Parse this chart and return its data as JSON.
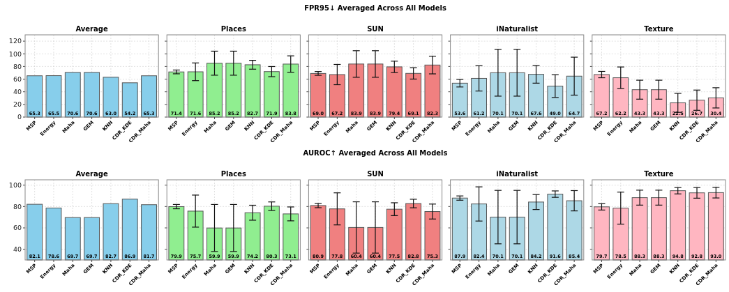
{
  "chart_data": [
    {
      "type": "bar",
      "title": "Average",
      "categories": [
        "MSP",
        "Energy",
        "Maha",
        "GEM",
        "KNN",
        "CDR_KDE",
        "CDR_Maha"
      ],
      "values": [
        65.3,
        65.5,
        70.6,
        70.6,
        63.0,
        54.2,
        65.3
      ],
      "value_labels": [
        "65.3",
        "65.5",
        "70.6",
        "70.6",
        "63.0",
        "54.2",
        "65.3"
      ],
      "color": "#87ceeb",
      "ylim": [
        0,
        130
      ],
      "yticks": [
        0,
        20,
        40,
        60,
        80,
        100,
        120
      ],
      "grid": true
    },
    {
      "type": "bar",
      "title": "Places",
      "categories": [
        "MSP",
        "Energy",
        "Maha",
        "GEM",
        "KNN",
        "CDR_KDE",
        "CDR_Maha"
      ],
      "values": [
        71.4,
        71.6,
        85.2,
        85.2,
        82.7,
        71.9,
        83.8
      ],
      "value_labels": [
        "71.4",
        "71.6",
        "85.2",
        "85.2",
        "82.7",
        "71.9",
        "83.8"
      ],
      "errors": [
        3,
        14,
        19,
        19,
        7,
        8,
        13
      ],
      "color": "#90ee90",
      "ylim": [
        0,
        130
      ],
      "yticks": [
        0,
        20,
        40,
        60,
        80,
        100,
        120
      ],
      "grid": true,
      "tick_labels": "x"
    },
    {
      "type": "bar",
      "subtitle": "FPR95↓ Averaged Across All Models",
      "title": "SUN",
      "categories": [
        "MSP",
        "Energy",
        "Maha",
        "GEM",
        "KNN",
        "CDR_KDE",
        "CDR_Maha"
      ],
      "values": [
        69.0,
        67.2,
        83.9,
        83.9,
        79.4,
        69.1,
        82.3
      ],
      "value_labels": [
        "69.0",
        "67.2",
        "83.9",
        "83.9",
        "79.4",
        "69.1",
        "82.3"
      ],
      "errors": [
        3,
        16,
        21,
        21,
        9,
        9,
        14
      ],
      "color": "#f08080",
      "ylim": [
        0,
        130
      ],
      "yticks": [
        0,
        20,
        40,
        60,
        80,
        100,
        120
      ],
      "grid": true,
      "tick_labels": "x"
    },
    {
      "type": "bar",
      "title": "iNaturalist",
      "categories": [
        "MSP",
        "Energy",
        "Maha",
        "GEM",
        "KNN",
        "CDR_KDE",
        "CDR_Maha"
      ],
      "values": [
        53.6,
        61.2,
        70.1,
        70.1,
        67.6,
        49.0,
        64.7
      ],
      "value_labels": [
        "53.6",
        "61.2",
        "70.1",
        "70.1",
        "67.6",
        "49.0",
        "64.7"
      ],
      "errors": [
        6,
        20,
        37,
        37,
        14,
        18,
        30
      ],
      "color": "#add8e6",
      "ylim": [
        0,
        130
      ],
      "yticks": [
        0,
        20,
        40,
        60,
        80,
        100,
        120
      ],
      "grid": true,
      "tick_labels": "x"
    },
    {
      "type": "bar",
      "title": "Texture",
      "categories": [
        "MSP",
        "Energy",
        "Maha",
        "GEM",
        "KNN",
        "CDR_KDE",
        "CDR_Maha"
      ],
      "values": [
        67.2,
        62.2,
        43.3,
        43.3,
        22.5,
        26.7,
        30.4
      ],
      "value_labels": [
        "67.2",
        "62.2",
        "43.3",
        "43.3",
        "22.5",
        "26.7",
        "30.4"
      ],
      "errors": [
        5,
        17,
        15,
        15,
        15,
        16,
        16
      ],
      "color": "#ffb6c1",
      "ylim": [
        0,
        130
      ],
      "yticks": [
        0,
        20,
        40,
        60,
        80,
        100,
        120
      ],
      "grid": true,
      "tick_labels": "x"
    },
    {
      "type": "bar",
      "title": "Average",
      "categories": [
        "MSP",
        "Energy",
        "Maha",
        "GEM",
        "KNN",
        "CDR_KDE",
        "CDR_Maha"
      ],
      "values": [
        82.1,
        78.6,
        69.7,
        69.7,
        82.7,
        86.9,
        81.7
      ],
      "value_labels": [
        "82.1",
        "78.6",
        "69.7",
        "69.7",
        "82.7",
        "86.9",
        "81.7"
      ],
      "color": "#87ceeb",
      "ylim": [
        30,
        105
      ],
      "yticks": [
        40,
        60,
        80,
        100
      ],
      "grid": true
    },
    {
      "type": "bar",
      "title": "Places",
      "categories": [
        "MSP",
        "Energy",
        "Maha",
        "GEM",
        "KNN",
        "CDR_KDE",
        "CDR_Maha"
      ],
      "values": [
        79.9,
        75.7,
        59.9,
        59.9,
        74.2,
        80.3,
        73.1
      ],
      "value_labels": [
        "79.9",
        "75.7",
        "59.9",
        "59.9",
        "74.2",
        "80.3",
        "73.1"
      ],
      "errors": [
        2,
        15,
        22,
        22,
        7,
        4,
        6.5
      ],
      "color": "#90ee90",
      "ylim": [
        30,
        105
      ],
      "yticks": [
        40,
        60,
        80,
        100
      ],
      "grid": true,
      "tick_labels": "x"
    },
    {
      "type": "bar",
      "subtitle": "AUROC↑ Averaged Across All Models",
      "title": "SUN",
      "categories": [
        "MSP",
        "Energy",
        "Maha",
        "GEM",
        "KNN",
        "CDR_KDE",
        "CDR_Maha"
      ],
      "values": [
        80.9,
        77.8,
        60.4,
        60.4,
        77.5,
        82.8,
        75.3
      ],
      "value_labels": [
        "80.9",
        "77.8",
        "60.4",
        "60.4",
        "77.5",
        "82.8",
        "75.3"
      ],
      "errors": [
        2,
        15,
        24,
        24,
        6,
        4,
        7
      ],
      "color": "#f08080",
      "ylim": [
        30,
        105
      ],
      "yticks": [
        40,
        60,
        80,
        100
      ],
      "grid": true,
      "tick_labels": "x"
    },
    {
      "type": "bar",
      "title": "iNaturalist",
      "categories": [
        "MSP",
        "Energy",
        "Maha",
        "GEM",
        "KNN",
        "CDR_KDE",
        "CDR_Maha"
      ],
      "values": [
        87.9,
        82.4,
        70.1,
        70.1,
        84.2,
        91.6,
        85.4
      ],
      "value_labels": [
        "87.9",
        "82.4",
        "70.1",
        "70.1",
        "84.2",
        "91.6",
        "85.4"
      ],
      "errors": [
        2,
        16,
        25,
        25,
        7,
        3,
        9.5
      ],
      "color": "#add8e6",
      "ylim": [
        30,
        105
      ],
      "yticks": [
        40,
        60,
        80,
        100
      ],
      "grid": true,
      "tick_labels": "x"
    },
    {
      "type": "bar",
      "title": "Texture",
      "categories": [
        "MSP",
        "Energy",
        "Maha",
        "GEM",
        "KNN",
        "CDR_KDE",
        "CDR_Maha"
      ],
      "values": [
        79.7,
        78.5,
        88.3,
        88.3,
        94.8,
        92.8,
        93.0
      ],
      "value_labels": [
        "79.7",
        "78.5",
        "88.3",
        "88.3",
        "94.8",
        "92.8",
        "93.0"
      ],
      "errors": [
        3,
        15,
        7,
        7,
        3,
        5,
        5
      ],
      "color": "#ffb6c1",
      "ylim": [
        30,
        105
      ],
      "yticks": [
        40,
        60,
        80,
        100
      ],
      "grid": true,
      "tick_labels": "x"
    }
  ]
}
